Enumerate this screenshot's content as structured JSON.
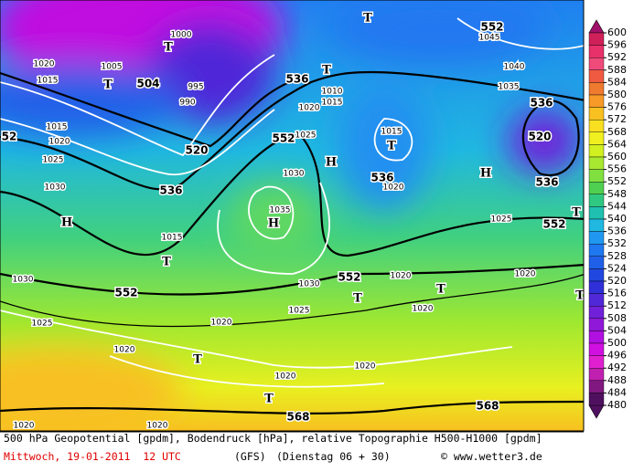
{
  "map": {
    "labels": [
      "552",
      "1045",
      "1040",
      "1035",
      "536",
      "520",
      "536",
      "H",
      "552",
      "T",
      "1025",
      "504",
      "T",
      "T",
      "1000",
      "1005",
      "1020",
      "1015",
      "995",
      "990",
      "520",
      "536",
      "536",
      "552",
      "1010",
      "1015",
      "1020",
      "1025",
      "1030",
      "1035",
      "H",
      "H",
      "T",
      "T",
      "T",
      "1015",
      "536",
      "1020",
      "552",
      "1020",
      "1030",
      "1025",
      "T",
      "T",
      "1020",
      "1020",
      "T",
      "552",
      "T",
      "1015",
      "H",
      "1030",
      "1025",
      "1020",
      "1015",
      "52",
      "1030",
      "1025",
      "1020",
      "1020",
      "T",
      "1020",
      "1020",
      "T",
      "568",
      "568",
      "1020",
      "1020"
    ]
  },
  "colorbar": {
    "levels": [
      600,
      596,
      592,
      588,
      584,
      580,
      576,
      572,
      568,
      564,
      560,
      556,
      552,
      548,
      544,
      540,
      536,
      532,
      528,
      524,
      520,
      516,
      512,
      508,
      504,
      500,
      496,
      492,
      488,
      484,
      480
    ],
    "colors": [
      "#a0106a",
      "#d0205a",
      "#e8306a",
      "#f04a7a",
      "#f05a40",
      "#f07a30",
      "#f89a28",
      "#f8c020",
      "#f8e020",
      "#f0f020",
      "#d0f020",
      "#a8e830",
      "#80e040",
      "#50d050",
      "#30c880",
      "#20c0b0",
      "#20b8e0",
      "#2098f0",
      "#2078f0",
      "#2060e8",
      "#2048e0",
      "#3030d8",
      "#5028d8",
      "#7020d8",
      "#9018d8",
      "#b010e0",
      "#d010e0",
      "#e020d0",
      "#c020b0",
      "#801880",
      "#501060"
    ]
  },
  "footer": {
    "line1": "500 hPa Geopotential [gpdm], Bodendruck [hPa], relative Topographie H500-H1000 [gpdm]",
    "date": "Mittwoch, 19-01-2011  12 UTC",
    "model": "(GFS)",
    "run": "(Dienstag 06 + 30)",
    "credit": "© www.wetter3.de"
  }
}
